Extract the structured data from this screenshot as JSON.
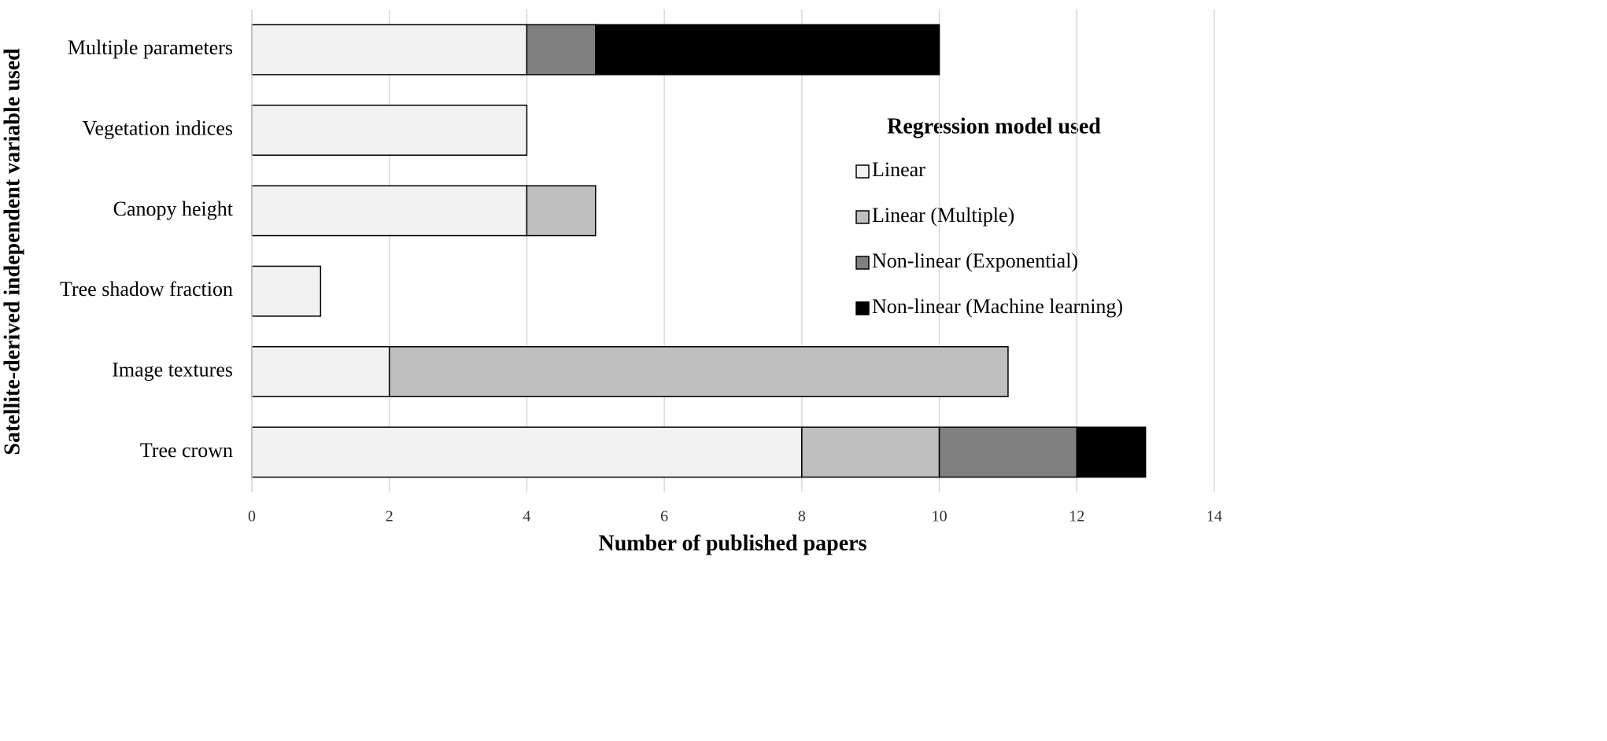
{
  "chart_data": {
    "type": "stacked-barh",
    "xlabel": "Number of published papers",
    "ylabel": "Satellite-derived independent variable used",
    "legend_title": "Regression model used",
    "categories": [
      "Multiple parameters",
      "Vegetation indices",
      "Canopy height",
      "Tree shadow fraction",
      "Image textures",
      "Tree crown"
    ],
    "series": [
      {
        "name": "Linear",
        "color": "#f2f2f2",
        "values": [
          4,
          4,
          4,
          1,
          2,
          8
        ]
      },
      {
        "name": "Linear (Multiple)",
        "color": "#bfbfbf",
        "values": [
          0,
          0,
          1,
          0,
          9,
          2
        ]
      },
      {
        "name": "Non-linear (Exponential)",
        "color": "#808080",
        "values": [
          1,
          0,
          0,
          0,
          0,
          2
        ]
      },
      {
        "name": "Non-linear (Machine learning)",
        "color": "#000000",
        "values": [
          5,
          0,
          0,
          0,
          0,
          1
        ]
      }
    ],
    "xlim": [
      0,
      14
    ],
    "xticks": [
      0,
      2,
      4,
      6,
      8,
      10,
      12,
      14
    ],
    "grid": true,
    "legend": "right"
  }
}
